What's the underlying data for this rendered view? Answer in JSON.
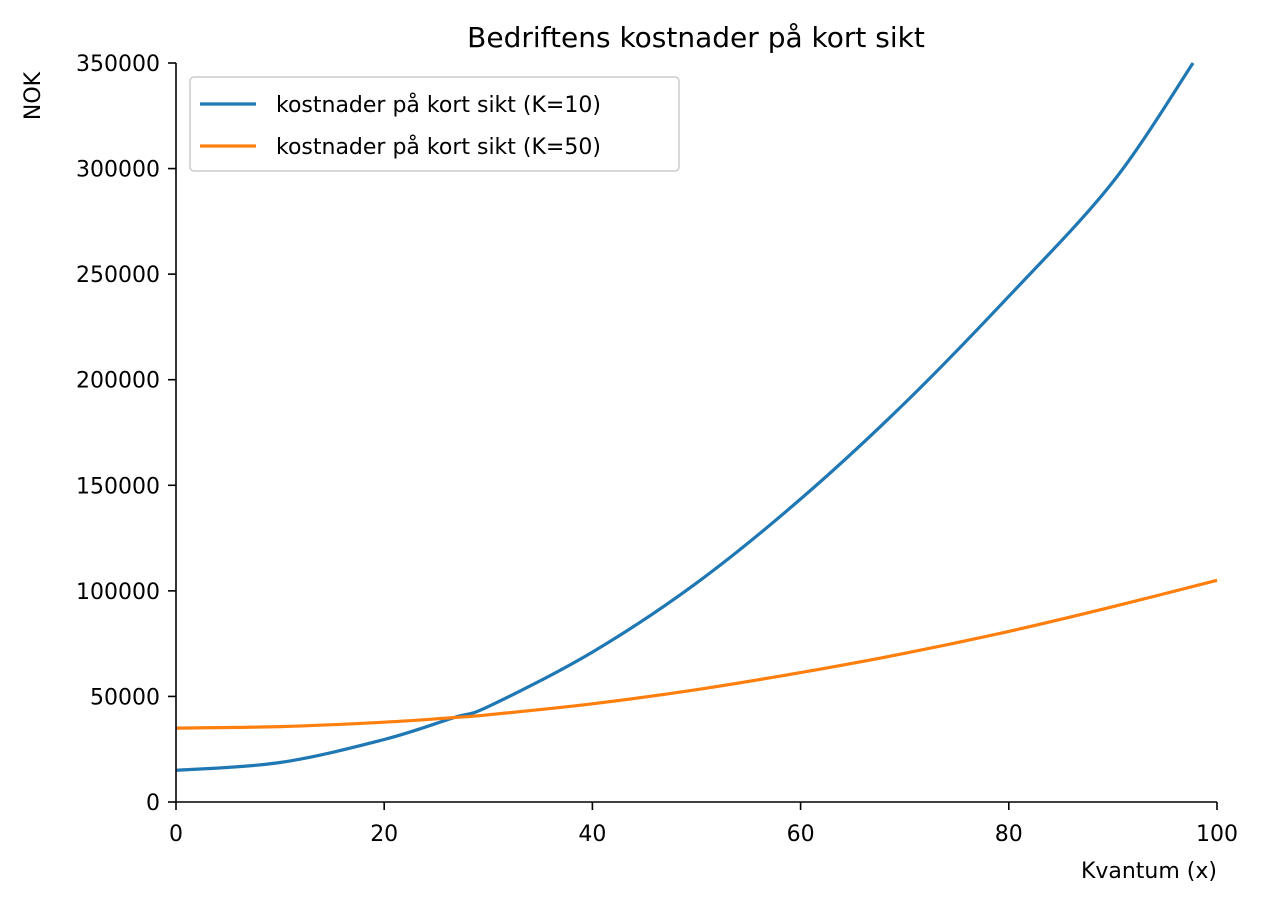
{
  "chart_data": {
    "type": "line",
    "title": "Bedriftens kostnader på kort sikt",
    "xlabel": "Kvantum (x)",
    "ylabel": "NOK",
    "xlim": [
      0,
      100
    ],
    "ylim": [
      0,
      350000
    ],
    "x_ticks": [
      "0",
      "20",
      "40",
      "60",
      "80",
      "100"
    ],
    "y_ticks": [
      "0",
      "50000",
      "100000",
      "150000",
      "200000",
      "250000",
      "300000",
      "350000"
    ],
    "grid": false,
    "legend_position": "top-left",
    "series": [
      {
        "name": "kostnader på kort sikt (K=10)",
        "color": "#1f77b4",
        "x": [
          0,
          10,
          20,
          26.7,
          30,
          40,
          50,
          60,
          70,
          80,
          90,
          97.7
        ],
        "y": [
          15000,
          18700,
          29600,
          40000,
          45200,
          71000,
          103700,
          143500,
          188900,
          239500,
          293700,
          350000
        ]
      },
      {
        "name": "kostnader på kort sikt (K=50)",
        "color": "#ff7f0e",
        "x": [
          0,
          10,
          20,
          26.7,
          30,
          40,
          50,
          60,
          70,
          80,
          90,
          100
        ],
        "y": [
          35000,
          35700,
          37800,
          40000,
          41300,
          46500,
          53200,
          61300,
          70400,
          80800,
          92500,
          105000
        ]
      }
    ]
  }
}
